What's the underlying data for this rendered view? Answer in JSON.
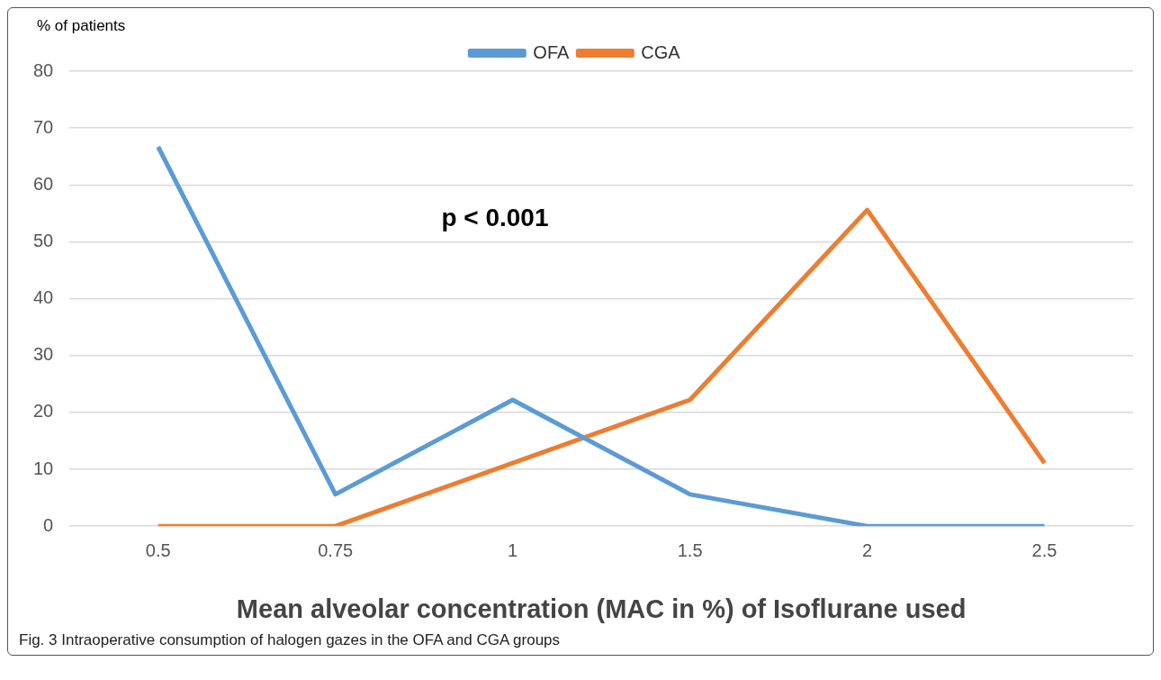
{
  "chart_data": {
    "type": "line",
    "ylabel": "% of patients",
    "xlabel": "Mean alveolar concentration (MAC in %) of Isoflurane used",
    "categories": [
      "0.5",
      "0.75",
      "1",
      "1.5",
      "2",
      "2.5"
    ],
    "series": [
      {
        "name": "OFA",
        "color": "#5b9bd5",
        "values": [
          66.7,
          5.6,
          22.2,
          5.6,
          0,
          0
        ]
      },
      {
        "name": "CGA",
        "color": "#ed7d31",
        "values": [
          0,
          0,
          11.1,
          22.2,
          55.6,
          11.1
        ]
      }
    ],
    "ylim": [
      0,
      80
    ],
    "yticks": [
      0,
      10,
      20,
      30,
      40,
      50,
      60,
      70,
      80
    ],
    "grid": "y",
    "legend": "top",
    "marker": "none",
    "line_style": "solid",
    "annotations": [
      "p < 0.001",
      "Fig. 3 Intraoperative consumption of halogen gazes in the OFA and CGA groups"
    ]
  }
}
